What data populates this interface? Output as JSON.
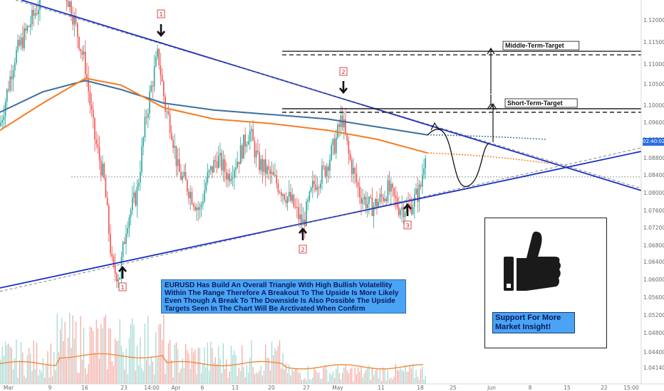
{
  "chart_data": {
    "type": "candlestick",
    "symbol": "EURUSD",
    "y_axis": {
      "range": [
        1.0384,
        1.1248
      ],
      "tick_labels": [
        "1.12000",
        "1.11500",
        "1.11000",
        "1.10500",
        "1.10000",
        "1.09600",
        "1.09200",
        "1.08800",
        "1.08400",
        "1.08000",
        "1.07600",
        "1.07200",
        "1.06800",
        "1.06400",
        "1.06000",
        "1.05600",
        "1.05200",
        "1.04800",
        "1.04400",
        "1.04140"
      ]
    },
    "x_axis": {
      "tick_labels": [
        "Mar",
        "9",
        "16",
        "23",
        "14:00",
        "Apr",
        "6",
        "13",
        "20",
        "27",
        "May",
        "11",
        "18",
        "25",
        "Jun",
        "8",
        "15",
        "22",
        "15:00"
      ]
    },
    "current_price_label": "02:40:02",
    "moving_averages": [
      {
        "color": "#3d6e9e"
      },
      {
        "color": "#f57c22"
      }
    ],
    "trendlines": [
      {
        "role": "descending-resistance",
        "color": "#1a2fc4"
      },
      {
        "role": "ascending-support",
        "color": "#1a2fc4"
      }
    ],
    "target_levels": [
      {
        "label": "Middle-Term-Target",
        "price": 1.113
      },
      {
        "label": "Short-Term-Target",
        "price": 1.1003
      }
    ],
    "touch_markers": [
      {
        "number": "1",
        "side": "top"
      },
      {
        "number": "2",
        "side": "top"
      },
      {
        "number": "1",
        "side": "bottom"
      },
      {
        "number": "2",
        "side": "bottom"
      },
      {
        "number": "3",
        "side": "bottom"
      }
    ]
  },
  "annotation_text": "EURUSD Has Build An Overall Triangle With High Bullish Volatellity Within The Range Therefore A Breakout To The Upside Is More Likely Even Though A Break To The Downside Is Also Possible The Upside Targets Seen In The Chart Will Be Arctivated When Confirm",
  "support_text": "Support For More Market Insight!",
  "colors": {
    "bull": "#26a69a",
    "bear": "#ef5350",
    "trendline": "#1a2fc4",
    "ma_blue": "#3d6e9e",
    "ma_orange": "#f57c22",
    "info_bg": "#4aa3f5"
  }
}
